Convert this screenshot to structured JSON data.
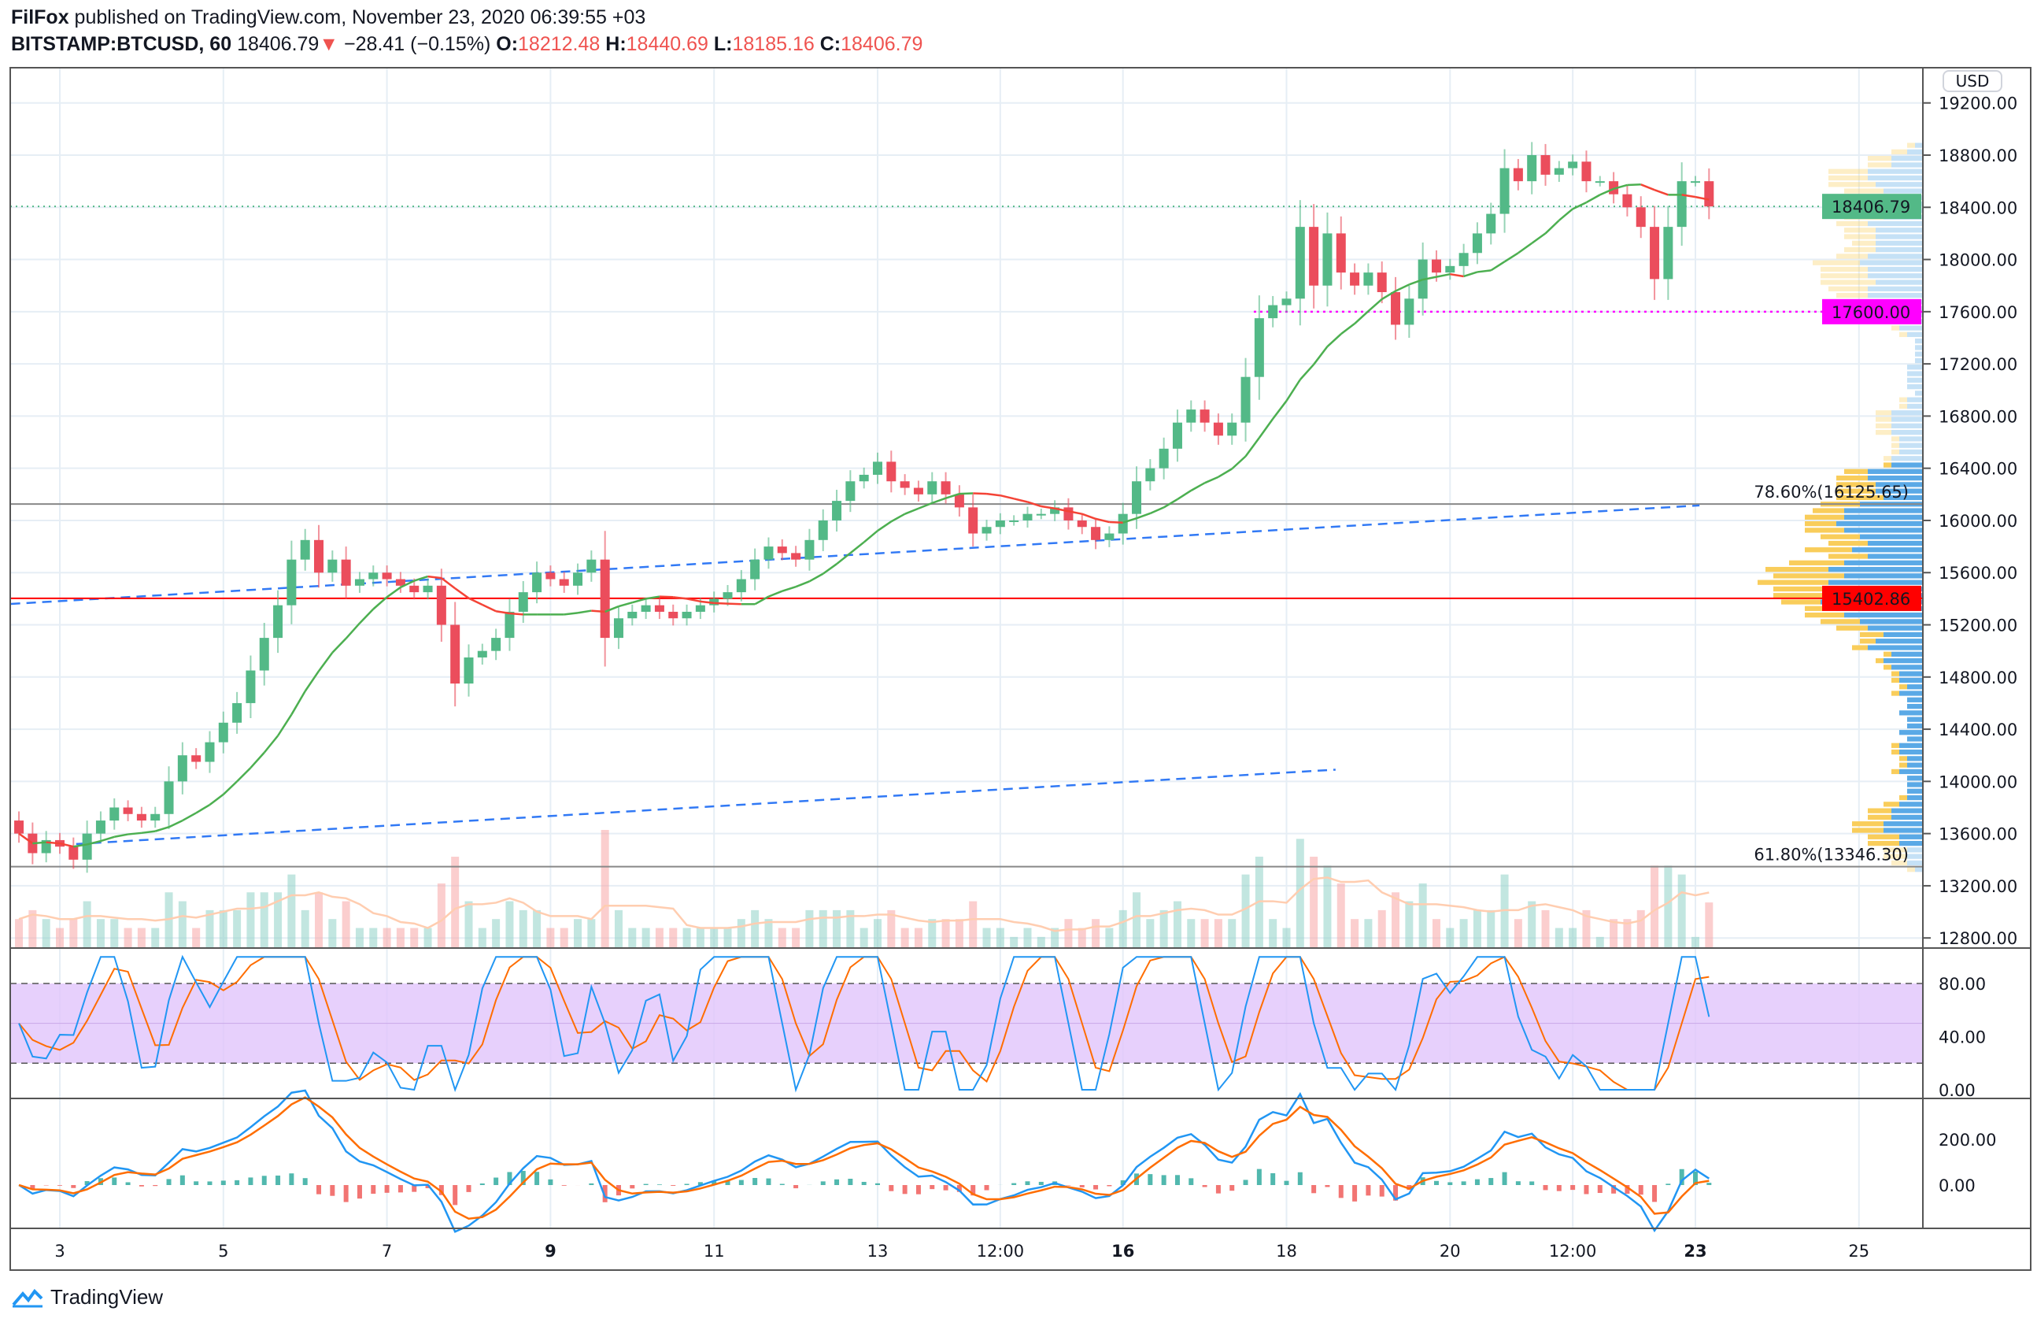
{
  "header": {
    "author": "FilFox",
    "published": " published on TradingView.com, November 23, 2020 06:39:55 +03",
    "symbol": "BITSTAMP:BTCUSD, 60",
    "last": "18406.79",
    "change": "−28.41 (−0.15%)",
    "o_label": "O:",
    "o": "18212.48",
    "h_label": "H:",
    "h": "18440.69",
    "l_label": "L:",
    "l": "18185.16",
    "c_label": "C:",
    "c": "18406.79"
  },
  "currency_button": "USD",
  "brand": "TradingView",
  "colors": {
    "up": "#53b987",
    "down": "#eb4d5c",
    "ma_up": "#4caf50",
    "ma_down": "#f44336",
    "trend": "#3179f5",
    "fib": "#888888",
    "support": "#ff0000",
    "last_price": "#53b987",
    "level": "#ff00ff",
    "stoch_band": "#e1c4fb",
    "stoch_k": "#2196f3",
    "stoch_d": "#ff6d00",
    "macd": "#2196f3",
    "signal": "#ff6d00"
  },
  "chart_data": {
    "type": "candlestick",
    "interval_shown": "60",
    "sample_start": "2020-11-02 12:00",
    "sample_interval": "4h",
    "closes": [
      13600,
      13450,
      13550,
      13500,
      13400,
      13600,
      13700,
      13800,
      13750,
      13700,
      13750,
      14000,
      14200,
      14150,
      14300,
      14450,
      14600,
      14850,
      15100,
      15350,
      15700,
      15850,
      15600,
      15700,
      15500,
      15550,
      15600,
      15550,
      15500,
      15450,
      15500,
      15200,
      14750,
      14950,
      15000,
      15100,
      15300,
      15450,
      15600,
      15550,
      15500,
      15600,
      15700,
      15100,
      15250,
      15300,
      15350,
      15300,
      15250,
      15300,
      15350,
      15400,
      15450,
      15550,
      15700,
      15800,
      15750,
      15700,
      15850,
      16000,
      16150,
      16300,
      16350,
      16450,
      16300,
      16250,
      16200,
      16300,
      16200,
      16100,
      15900,
      15950,
      16000,
      16000,
      16050,
      16050,
      16100,
      16000,
      15950,
      15850,
      15900,
      16050,
      16300,
      16400,
      16550,
      16750,
      16850,
      16750,
      16650,
      16750,
      17100,
      17550,
      17650,
      17700,
      18250,
      17800,
      18200,
      17900,
      17800,
      17900,
      17750,
      17500,
      17700,
      18000,
      17900,
      17950,
      18050,
      18200,
      18350,
      18700,
      18600,
      18800,
      18650,
      18700,
      18750,
      18600,
      18600,
      18500,
      18400,
      18250,
      17850,
      18250,
      18600,
      18600,
      18406.79
    ],
    "price_ticks": [
      "19200.00",
      "18800.00",
      "18400.00",
      "18000.00",
      "17600.00",
      "17200.00",
      "16800.00",
      "16400.00",
      "16000.00",
      "15600.00",
      "15200.00",
      "14800.00",
      "14400.00",
      "14000.00",
      "13600.00",
      "13200.00",
      "12800.00"
    ],
    "ylim": [
      12800,
      19200
    ],
    "time_ticks": [
      {
        "label": "3",
        "day": 3
      },
      {
        "label": "5",
        "day": 5
      },
      {
        "label": "7",
        "day": 7
      },
      {
        "label": "9",
        "day": 9,
        "bold": true
      },
      {
        "label": "11",
        "day": 11
      },
      {
        "label": "13",
        "day": 13
      },
      {
        "label": "12:00",
        "day": 14.5
      },
      {
        "label": "16",
        "day": 16,
        "bold": true
      },
      {
        "label": "18",
        "day": 18
      },
      {
        "label": "20",
        "day": 20
      },
      {
        "label": "12:00",
        "day": 21.5
      },
      {
        "label": "23",
        "day": 23,
        "bold": true
      },
      {
        "label": "25",
        "day": 25
      }
    ],
    "levels": [
      {
        "name": "last-price",
        "price": 18406.79,
        "label": "18406.79"
      },
      {
        "name": "level-17600",
        "price": 17600,
        "label": "17600.00",
        "from_day": 17.6
      },
      {
        "name": "support",
        "price": 15402.86,
        "label": "15402.86"
      }
    ],
    "fib_levels": [
      {
        "price": 16125.65,
        "label": "78.60%(16125.65)"
      },
      {
        "price": 13346.3,
        "label": "61.80%(13346.30)"
      }
    ],
    "trendlines": [
      {
        "from": {
          "day": 2.4,
          "price": 15360
        },
        "to": {
          "day": 23.05,
          "price": 16115
        }
      },
      {
        "from": {
          "day": 3.2,
          "price": 13520
        },
        "to": {
          "day": 18.6,
          "price": 14090
        }
      }
    ],
    "stoch_rsi": {
      "ticks": [
        "80.00",
        "40.00",
        "0.00"
      ],
      "band": [
        20,
        80
      ],
      "ylim": [
        0,
        100
      ]
    },
    "macd": {
      "ticks": [
        "200.00",
        "0.00"
      ]
    }
  }
}
